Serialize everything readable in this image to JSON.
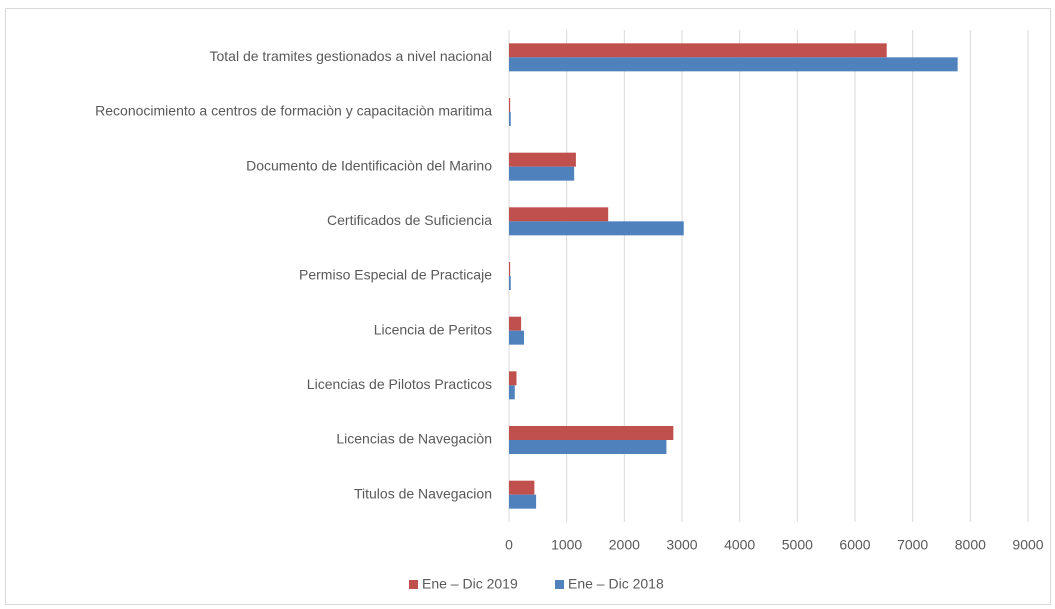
{
  "chart_data": {
    "type": "bar",
    "orientation": "horizontal",
    "categories": [
      "Total de tramites gestionados a nivel nacional",
      "Reconocimiento a centros de formaciòn y capacitaciòn maritima",
      "Documento de Identificaciòn del Marino",
      "Certificados de Suficiencia",
      "Permiso Especial de Practicaje",
      "Licencia de Peritos",
      "Licencias de Pilotos Practicos",
      "Licencias de Navegaciòn",
      "Titulos de Navegacion"
    ],
    "series": [
      {
        "name": "Ene – Dic 2019",
        "color": "#c0504d",
        "values": [
          6550,
          20,
          1160,
          1720,
          20,
          210,
          130,
          2850,
          440
        ]
      },
      {
        "name": "Ene – Dic 2018",
        "color": "#4f81bd",
        "values": [
          7780,
          30,
          1130,
          3030,
          30,
          260,
          100,
          2730,
          470
        ]
      }
    ],
    "xlim": [
      0,
      9000
    ],
    "xticks": [
      0,
      1000,
      2000,
      3000,
      4000,
      5000,
      6000,
      7000,
      8000,
      9000
    ],
    "grid": true,
    "legend": "bottom"
  }
}
